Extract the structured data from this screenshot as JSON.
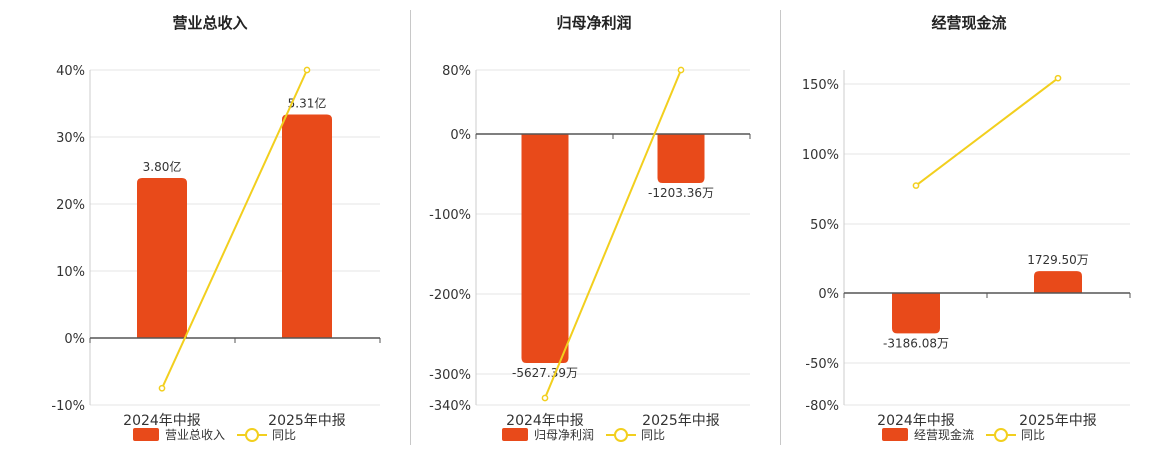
{
  "colors": {
    "bar": "#e84a1a",
    "line": "#f2cf1e",
    "grid": "#e6e6e6",
    "axis": "#555555"
  },
  "chart_data": [
    {
      "type": "bar",
      "title": "营业总收入",
      "categories": [
        "2024年中报",
        "2025年中报"
      ],
      "values": [
        3.8,
        5.31
      ],
      "value_labels": [
        "3.80亿",
        "5.31亿"
      ],
      "yoy": [
        -7.5,
        40
      ],
      "yoy_ticks": [
        "40%",
        "30%",
        "20%",
        "10%",
        "0%",
        "-10%"
      ],
      "legend": [
        "营业总收入",
        "同比"
      ],
      "grid": true
    },
    {
      "type": "bar",
      "title": "归母净利润",
      "categories": [
        "2024年中报",
        "2025年中报"
      ],
      "values": [
        -5627.39,
        -1203.36
      ],
      "value_labels": [
        "-5627.39万",
        "-1203.36万"
      ],
      "yoy": [
        -330,
        80
      ],
      "yoy_ticks": [
        "80%",
        "0%",
        "-100%",
        "-200%",
        "-300%",
        "-340%"
      ],
      "legend": [
        "归母净利润",
        "同比"
      ],
      "grid": true
    },
    {
      "type": "bar",
      "title": "经营现金流",
      "categories": [
        "2024年中报",
        "2025年中报"
      ],
      "values": [
        -3186.08,
        1729.5
      ],
      "value_labels": [
        "-3186.08万",
        "1729.50万"
      ],
      "yoy": [
        77,
        154
      ],
      "yoy_ticks": [
        "150%",
        "100%",
        "50%",
        "0%",
        "-50%",
        "-80%"
      ],
      "legend": [
        "经营现金流",
        "同比"
      ],
      "grid": true
    }
  ]
}
